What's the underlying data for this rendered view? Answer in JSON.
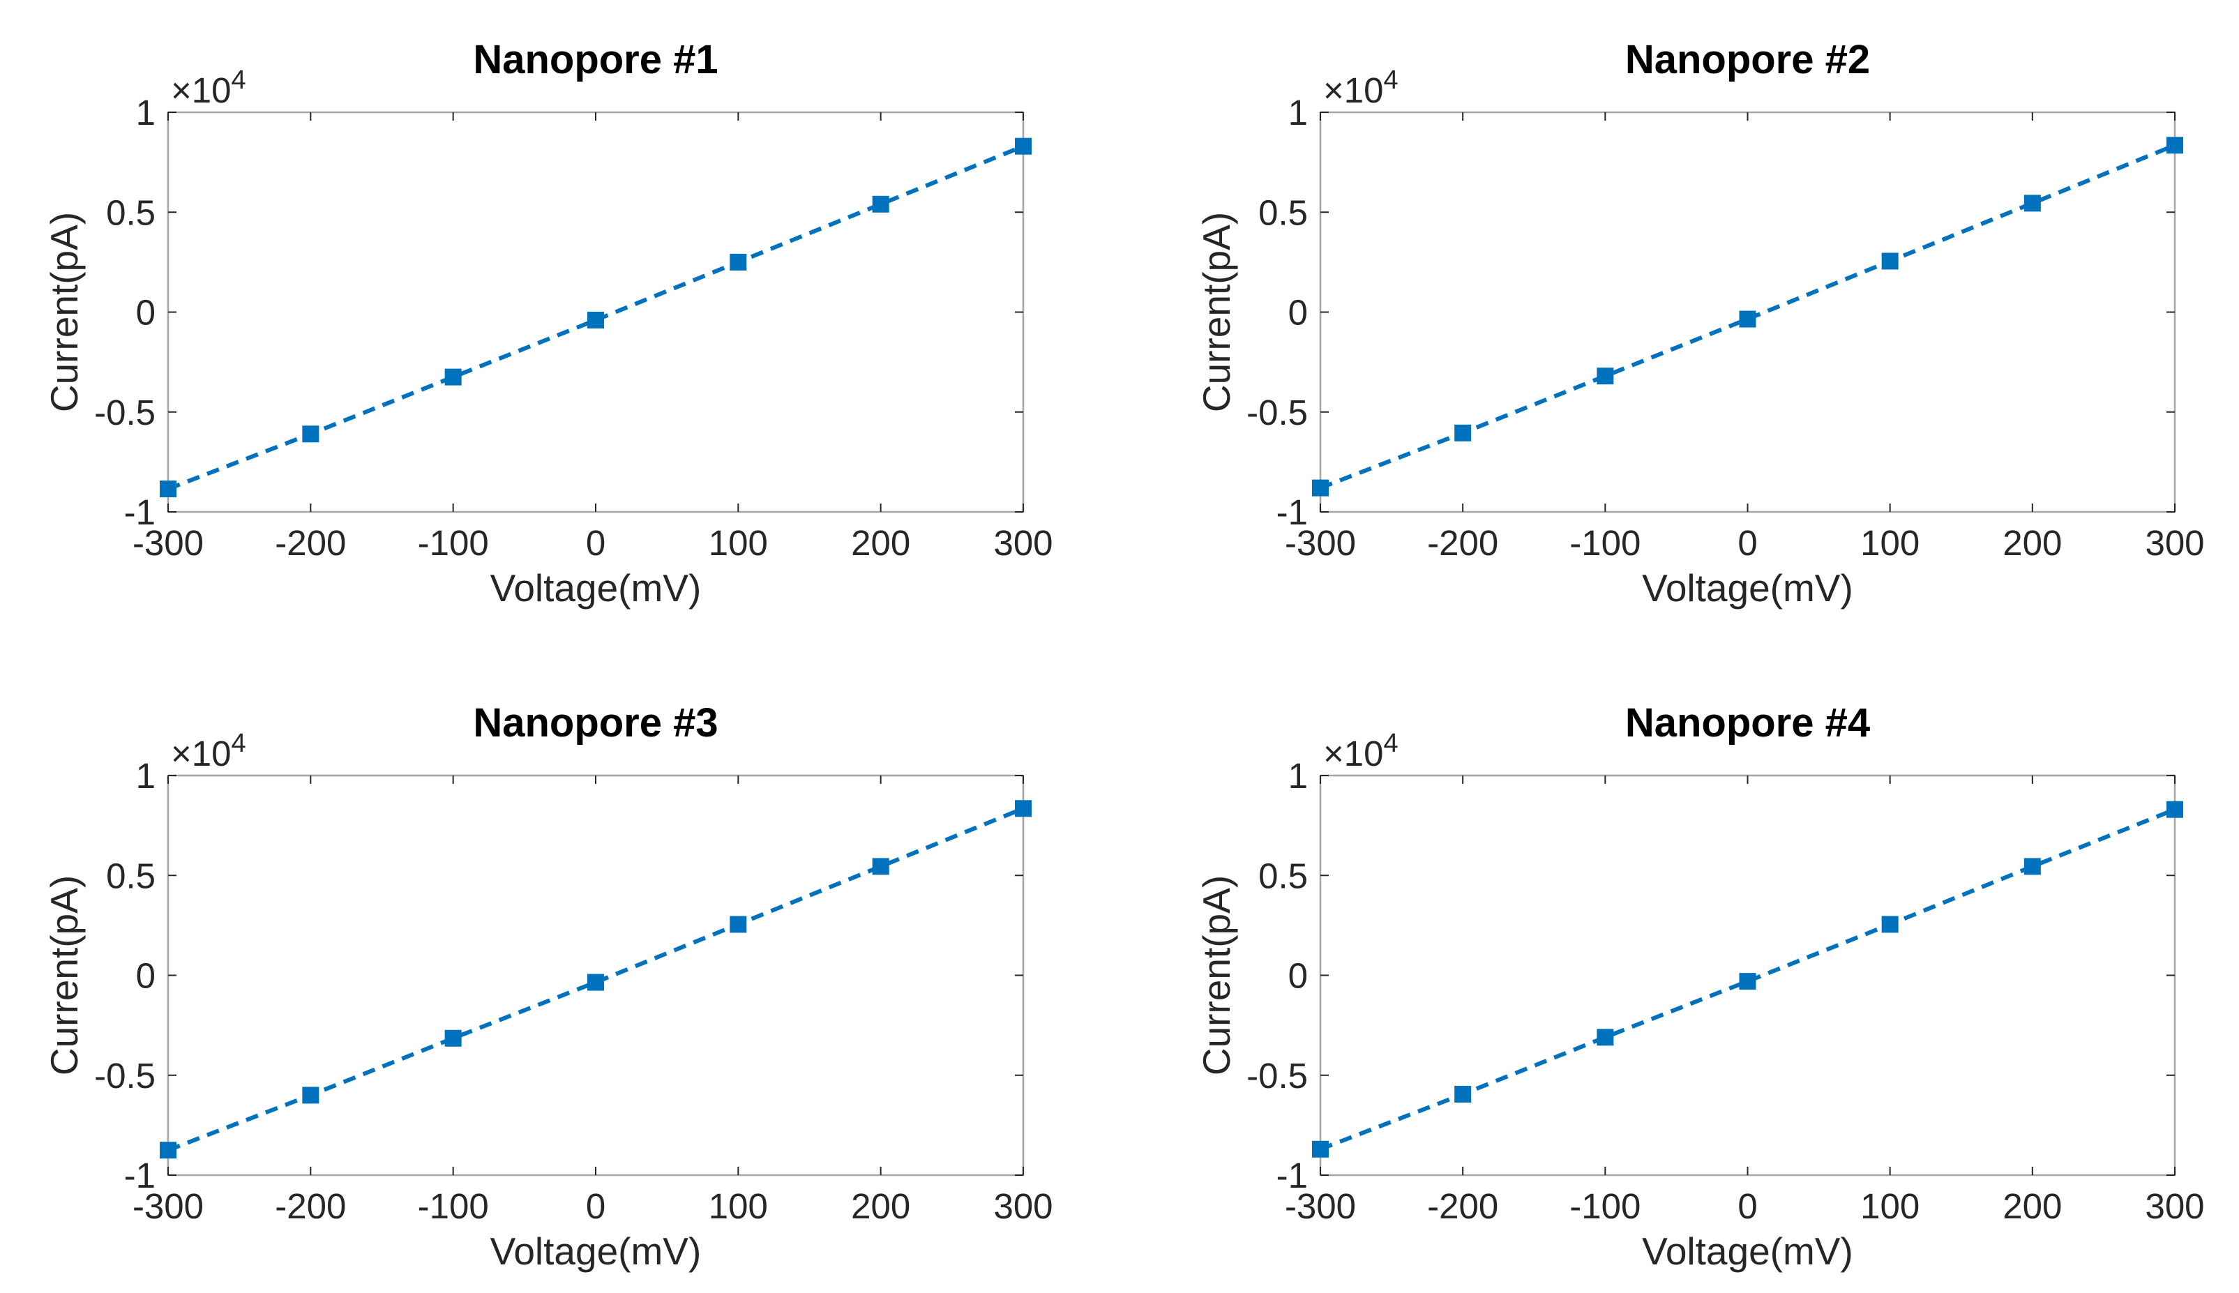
{
  "figure": {
    "series_color": "#0072BD"
  },
  "chart_data": [
    {
      "type": "line",
      "title": "Nanopore #1",
      "xlabel": "Voltage(mV)",
      "ylabel": "Current(pA)",
      "y_multiplier": "×10",
      "y_exponent": "4",
      "xlim": [
        -300,
        300
      ],
      "ylim": [
        -10000,
        10000
      ],
      "x_ticks": [
        -300,
        -200,
        -100,
        0,
        100,
        200,
        300
      ],
      "x_tick_labels": [
        "-300",
        "-200",
        "-100",
        "0",
        "100",
        "200",
        "300"
      ],
      "y_ticks": [
        -10000,
        -5000,
        0,
        5000,
        10000
      ],
      "y_tick_labels": [
        "-1",
        "-0.5",
        "0",
        "0.5",
        "1"
      ],
      "marker": "square",
      "line_style": "dashed",
      "x": [
        -300,
        -200,
        -100,
        0,
        100,
        200,
        300
      ],
      "y": [
        -8850,
        -6100,
        -3250,
        -400,
        2500,
        5400,
        8300
      ]
    },
    {
      "type": "line",
      "title": "Nanopore #2",
      "xlabel": "Voltage(mV)",
      "ylabel": "Current(pA)",
      "y_multiplier": "×10",
      "y_exponent": "4",
      "xlim": [
        -300,
        300
      ],
      "ylim": [
        -10000,
        10000
      ],
      "x_ticks": [
        -300,
        -200,
        -100,
        0,
        100,
        200,
        300
      ],
      "x_tick_labels": [
        "-300",
        "-200",
        "-100",
        "0",
        "100",
        "200",
        "300"
      ],
      "y_ticks": [
        -10000,
        -5000,
        0,
        5000,
        10000
      ],
      "y_tick_labels": [
        "-1",
        "-0.5",
        "0",
        "0.5",
        "1"
      ],
      "marker": "square",
      "line_style": "dashed",
      "x": [
        -300,
        -200,
        -100,
        0,
        100,
        200,
        300
      ],
      "y": [
        -8800,
        -6050,
        -3200,
        -350,
        2550,
        5450,
        8350
      ]
    },
    {
      "type": "line",
      "title": "Nanopore #3",
      "xlabel": "Voltage(mV)",
      "ylabel": "Current(pA)",
      "y_multiplier": "×10",
      "y_exponent": "4",
      "xlim": [
        -300,
        300
      ],
      "ylim": [
        -10000,
        10000
      ],
      "x_ticks": [
        -300,
        -200,
        -100,
        0,
        100,
        200,
        300
      ],
      "x_tick_labels": [
        "-300",
        "-200",
        "-100",
        "0",
        "100",
        "200",
        "300"
      ],
      "y_ticks": [
        -10000,
        -5000,
        0,
        5000,
        10000
      ],
      "y_tick_labels": [
        "-1",
        "-0.5",
        "0",
        "0.5",
        "1"
      ],
      "marker": "square",
      "line_style": "dashed",
      "x": [
        -300,
        -200,
        -100,
        0,
        100,
        200,
        300
      ],
      "y": [
        -8750,
        -6000,
        -3150,
        -350,
        2550,
        5450,
        8350
      ]
    },
    {
      "type": "line",
      "title": "Nanopore #4",
      "xlabel": "Voltage(mV)",
      "ylabel": "Current(pA)",
      "y_multiplier": "×10",
      "y_exponent": "4",
      "xlim": [
        -300,
        300
      ],
      "ylim": [
        -10000,
        10000
      ],
      "x_ticks": [
        -300,
        -200,
        -100,
        0,
        100,
        200,
        300
      ],
      "x_tick_labels": [
        "-300",
        "-200",
        "-100",
        "0",
        "100",
        "200",
        "300"
      ],
      "y_ticks": [
        -10000,
        -5000,
        0,
        5000,
        10000
      ],
      "y_tick_labels": [
        "-1",
        "-0.5",
        "0",
        "0.5",
        "1"
      ],
      "marker": "square",
      "line_style": "dashed",
      "x": [
        -300,
        -200,
        -100,
        0,
        100,
        200,
        300
      ],
      "y": [
        -8700,
        -5950,
        -3100,
        -300,
        2550,
        5450,
        8300
      ]
    }
  ]
}
